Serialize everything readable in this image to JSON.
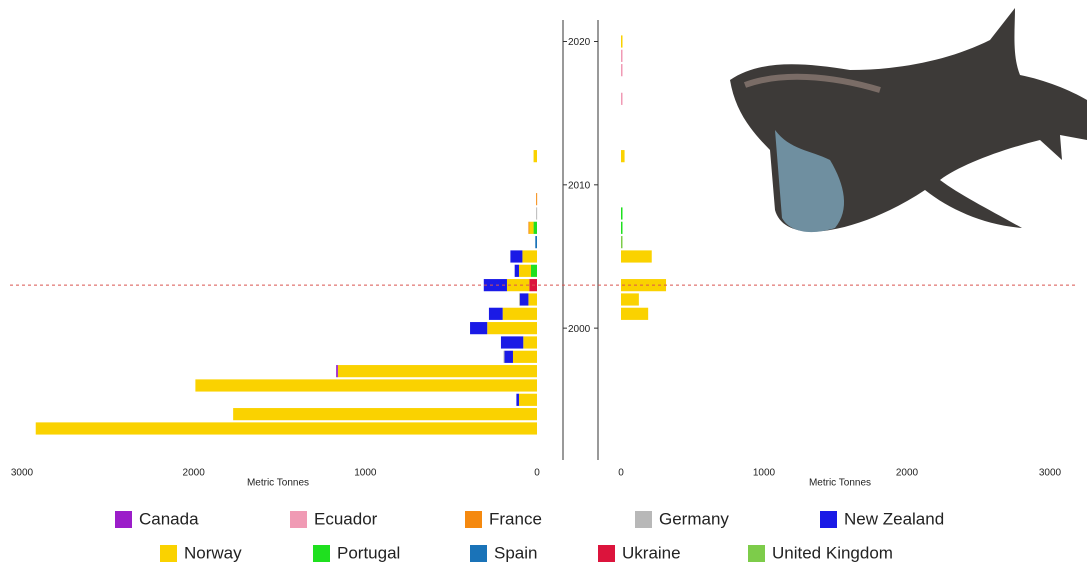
{
  "chart_data": {
    "type": "bar",
    "orientation": "horizontal",
    "xlabel": "Metric Tonnes",
    "x2label": "Metric Tonnes",
    "y": [
      1993,
      1994,
      1995,
      1996,
      1997,
      1998,
      1999,
      2000,
      2001,
      2002,
      2003,
      2004,
      2005,
      2006,
      2007,
      2008,
      2009,
      2012,
      2016,
      2018,
      2019,
      2020
    ],
    "ylim": [
      1990.8,
      2021.5
    ],
    "yticks": [
      2000,
      2010,
      2020
    ],
    "xlim": [
      3000,
      0
    ],
    "xticks": [
      3000,
      2000,
      1000,
      0
    ],
    "x2lim": [
      0,
      3000
    ],
    "x2ticks": [
      0,
      1000,
      2000,
      3000
    ],
    "hline": 2003,
    "hline_color": "#d9534f",
    "series": [
      {
        "name": "Canada",
        "color": "#9b1dc9",
        "values": [
          null,
          null,
          null,
          null,
          10,
          null,
          null,
          null,
          null,
          null,
          null,
          null,
          null,
          null,
          null,
          null,
          null,
          null,
          null,
          null,
          null,
          null
        ],
        "values2": [
          null,
          null,
          null,
          null,
          null,
          null,
          null,
          null,
          null,
          null,
          null,
          null,
          null,
          null,
          null,
          null,
          null,
          null,
          null,
          null,
          null,
          null
        ]
      },
      {
        "name": "Ecuador",
        "color": "#f09ab4",
        "values": [
          null,
          null,
          null,
          null,
          null,
          null,
          null,
          null,
          null,
          null,
          null,
          null,
          null,
          null,
          null,
          null,
          null,
          null,
          null,
          null,
          null,
          null
        ],
        "values2": [
          null,
          null,
          null,
          null,
          null,
          null,
          null,
          null,
          null,
          null,
          null,
          null,
          null,
          null,
          null,
          null,
          null,
          null,
          5,
          5,
          5,
          null
        ]
      },
      {
        "name": "France",
        "color": "#f5890f",
        "values": [
          null,
          null,
          null,
          null,
          null,
          null,
          null,
          null,
          null,
          null,
          null,
          null,
          null,
          null,
          5,
          null,
          5,
          null,
          null,
          null,
          null,
          null
        ],
        "values2": [
          null,
          null,
          null,
          null,
          null,
          null,
          null,
          null,
          null,
          null,
          null,
          null,
          null,
          null,
          null,
          null,
          null,
          null,
          null,
          null,
          null,
          null
        ]
      },
      {
        "name": "Germany",
        "color": "#b8b8b8",
        "values": [
          null,
          null,
          null,
          null,
          null,
          5,
          null,
          null,
          null,
          5,
          null,
          null,
          null,
          null,
          null,
          5,
          null,
          null,
          null,
          null,
          null,
          null
        ],
        "values2": [
          null,
          null,
          null,
          null,
          null,
          null,
          null,
          null,
          null,
          null,
          null,
          null,
          null,
          null,
          null,
          null,
          null,
          null,
          null,
          null,
          null,
          null
        ]
      },
      {
        "name": "New Zealand",
        "color": "#1a1ae6",
        "values": [
          null,
          null,
          15,
          null,
          null,
          50,
          130,
          100,
          80,
          50,
          135,
          25,
          70,
          null,
          null,
          null,
          null,
          null,
          null,
          null,
          null,
          null
        ],
        "values2": [
          null,
          null,
          null,
          null,
          null,
          null,
          null,
          null,
          null,
          null,
          null,
          null,
          null,
          null,
          null,
          null,
          null,
          null,
          null,
          null,
          null,
          null
        ]
      },
      {
        "name": "Norway",
        "color": "#fad200",
        "values": [
          2920,
          1770,
          105,
          1990,
          1160,
          140,
          80,
          290,
          200,
          50,
          130,
          70,
          85,
          null,
          25,
          null,
          null,
          20,
          null,
          null,
          null,
          null
        ],
        "values2": [
          null,
          null,
          null,
          null,
          null,
          null,
          null,
          null,
          190,
          125,
          315,
          null,
          215,
          null,
          null,
          null,
          null,
          25,
          null,
          null,
          null,
          5
        ]
      },
      {
        "name": "Portugal",
        "color": "#1fe01f",
        "values": [
          null,
          null,
          null,
          null,
          null,
          null,
          null,
          null,
          null,
          null,
          null,
          35,
          null,
          null,
          20,
          null,
          null,
          null,
          null,
          null,
          null,
          null
        ],
        "values2": [
          null,
          null,
          null,
          null,
          null,
          null,
          null,
          null,
          null,
          null,
          null,
          null,
          null,
          null,
          10,
          5,
          null,
          null,
          null,
          null,
          null,
          null
        ]
      },
      {
        "name": "Spain",
        "color": "#1a73b8",
        "values": [
          null,
          null,
          null,
          null,
          null,
          null,
          null,
          null,
          null,
          null,
          null,
          null,
          null,
          10,
          null,
          null,
          null,
          null,
          null,
          null,
          null,
          null
        ],
        "values2": [
          null,
          null,
          null,
          null,
          null,
          null,
          null,
          null,
          null,
          null,
          null,
          null,
          null,
          null,
          null,
          null,
          null,
          null,
          null,
          null,
          null,
          null
        ]
      },
      {
        "name": "Ukraine",
        "color": "#dc143c",
        "values": [
          null,
          null,
          null,
          null,
          null,
          null,
          null,
          null,
          null,
          null,
          45,
          null,
          null,
          null,
          null,
          null,
          null,
          null,
          null,
          null,
          null,
          null
        ],
        "values2": [
          null,
          null,
          null,
          null,
          null,
          null,
          null,
          null,
          null,
          null,
          null,
          null,
          null,
          null,
          null,
          null,
          null,
          null,
          null,
          null,
          null,
          null
        ]
      },
      {
        "name": "United Kingdom",
        "color": "#7dcc4a",
        "values": [
          null,
          null,
          null,
          null,
          null,
          null,
          null,
          null,
          null,
          null,
          null,
          null,
          null,
          null,
          null,
          null,
          null,
          null,
          null,
          null,
          null,
          null
        ],
        "values2": [
          null,
          null,
          null,
          null,
          null,
          null,
          null,
          null,
          null,
          null,
          null,
          null,
          null,
          5,
          null,
          null,
          null,
          null,
          null,
          null,
          null,
          null
        ]
      }
    ]
  }
}
